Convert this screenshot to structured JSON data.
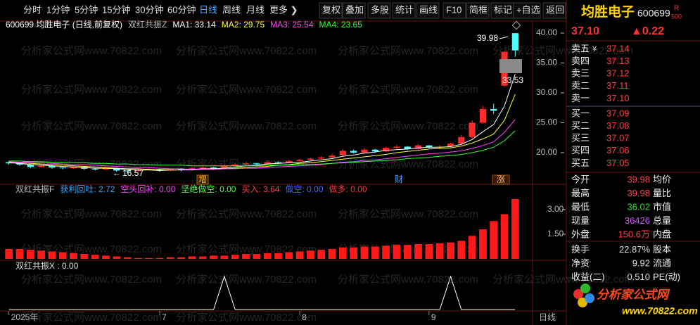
{
  "toolbar": {
    "periods": [
      "分时",
      "1分钟",
      "5分钟",
      "15分钟",
      "30分钟",
      "60分钟",
      "日线",
      "周线",
      "月线",
      "更多 ❯"
    ],
    "selected_period": 6,
    "actions": [
      "复权",
      "叠加",
      "多股",
      "统计",
      "画线",
      "F10",
      "简框",
      "标记",
      "+自选",
      "返回"
    ]
  },
  "watermark": "分析家公式网www.70822.com",
  "chart_data": [
    {
      "type": "candlestick",
      "title": "600699 均胜电子 (日线,前复权)",
      "indicator": "双红共振Z",
      "categories": [
        "2025年",
        null,
        null,
        null,
        null,
        null,
        null,
        null,
        null,
        null,
        null,
        null,
        null,
        null,
        "7",
        null,
        null,
        null,
        null,
        null,
        null,
        null,
        null,
        null,
        null,
        null,
        null,
        "8",
        null,
        null,
        null,
        null,
        null,
        null,
        null,
        null,
        null,
        null,
        null,
        "9",
        null,
        null,
        null,
        null,
        null,
        null,
        null,
        null
      ],
      "open": [
        18.4,
        18.2,
        18.0,
        17.6,
        17.8,
        17.5,
        17.4,
        17.6,
        17.3,
        17.2,
        17.4,
        17.0,
        16.9,
        17.1,
        17.2,
        17.0,
        17.3,
        17.1,
        17.4,
        17.5,
        17.3,
        17.8,
        18.0,
        18.2,
        18.1,
        18.4,
        18.3,
        18.6,
        18.8,
        19.0,
        19.2,
        19.6,
        20.3,
        20.0,
        20.5,
        20.2,
        20.8,
        21.0,
        20.6,
        21.2,
        20.9,
        21.0,
        21.5,
        22.6,
        25.0,
        27.3,
        31.2,
        39.98
      ],
      "high": [
        18.6,
        18.4,
        18.1,
        17.9,
        17.9,
        17.6,
        17.7,
        17.7,
        17.4,
        17.5,
        17.5,
        17.1,
        17.2,
        17.4,
        17.3,
        17.4,
        17.4,
        17.5,
        17.7,
        17.6,
        18.0,
        18.2,
        18.4,
        18.3,
        18.6,
        18.5,
        18.8,
        19.0,
        19.2,
        19.4,
        19.8,
        20.6,
        20.5,
        20.8,
        20.6,
        21.0,
        21.3,
        21.1,
        21.4,
        21.3,
        21.3,
        21.7,
        23.0,
        25.4,
        27.8,
        28.2,
        36.88,
        39.98
      ],
      "low": [
        18.0,
        17.8,
        17.4,
        17.5,
        17.3,
        17.2,
        17.3,
        17.1,
        17.0,
        17.1,
        16.8,
        16.57,
        16.8,
        17.0,
        16.8,
        16.9,
        16.9,
        17.0,
        17.3,
        17.1,
        17.2,
        17.8,
        17.9,
        17.9,
        18.0,
        18.1,
        18.2,
        18.5,
        18.6,
        18.9,
        19.0,
        19.4,
        19.8,
        19.9,
        20.0,
        20.1,
        20.6,
        20.4,
        20.5,
        20.7,
        20.6,
        20.8,
        21.3,
        22.4,
        24.8,
        26.5,
        31.0,
        36.02
      ],
      "close": [
        18.2,
        18.0,
        17.6,
        17.8,
        17.5,
        17.4,
        17.6,
        17.3,
        17.2,
        17.4,
        17.0,
        16.9,
        17.1,
        17.2,
        17.0,
        17.3,
        17.1,
        17.4,
        17.5,
        17.3,
        17.8,
        18.0,
        18.2,
        18.1,
        18.4,
        18.3,
        18.6,
        18.8,
        19.0,
        19.2,
        19.5,
        20.3,
        20.0,
        20.5,
        20.2,
        20.8,
        21.0,
        20.6,
        21.2,
        20.9,
        21.0,
        21.5,
        22.6,
        25.0,
        27.3,
        27.0,
        36.88,
        37.1
      ],
      "up_color": "#ff2a2a",
      "down_color": "#54ffff",
      "series": [
        {
          "name": "MA1: 33.14",
          "color": "#ffffff",
          "values": [
            18.3,
            18.2,
            18.0,
            17.9,
            17.8,
            17.7,
            17.6,
            17.5,
            17.4,
            17.4,
            17.3,
            17.2,
            17.1,
            17.1,
            17.0,
            17.1,
            17.1,
            17.2,
            17.3,
            17.3,
            17.4,
            17.6,
            17.8,
            17.9,
            18.1,
            18.2,
            18.3,
            18.4,
            18.6,
            18.8,
            19.0,
            19.4,
            19.6,
            19.9,
            20.1,
            20.4,
            20.5,
            20.6,
            20.8,
            20.9,
            20.9,
            21.0,
            21.4,
            22.2,
            23.5,
            24.7,
            27.8,
            33.14
          ]
        },
        {
          "name": "MA2: 29.75",
          "color": "#ffff33",
          "values": [
            18.4,
            18.3,
            18.2,
            18.1,
            18.0,
            17.9,
            17.8,
            17.7,
            17.6,
            17.5,
            17.4,
            17.3,
            17.3,
            17.2,
            17.2,
            17.1,
            17.1,
            17.1,
            17.2,
            17.2,
            17.3,
            17.4,
            17.5,
            17.6,
            17.7,
            17.9,
            18.0,
            18.2,
            18.3,
            18.5,
            18.7,
            18.9,
            19.1,
            19.3,
            19.5,
            19.7,
            20.0,
            20.2,
            20.4,
            20.6,
            20.7,
            20.8,
            21.1,
            21.6,
            22.3,
            23.1,
            25.4,
            29.75
          ]
        },
        {
          "name": "MA3: 25.54",
          "color": "#ff44ff",
          "values": [
            18.5,
            18.4,
            18.4,
            18.3,
            18.2,
            18.1,
            18.0,
            18.0,
            17.9,
            17.8,
            17.7,
            17.6,
            17.5,
            17.5,
            17.4,
            17.3,
            17.3,
            17.2,
            17.2,
            17.2,
            17.3,
            17.3,
            17.4,
            17.4,
            17.5,
            17.6,
            17.7,
            17.8,
            17.9,
            18.0,
            18.2,
            18.4,
            18.5,
            18.7,
            18.8,
            19.0,
            19.2,
            19.4,
            19.6,
            19.8,
            19.9,
            20.1,
            20.3,
            20.7,
            21.2,
            21.8,
            23.4,
            25.54
          ]
        },
        {
          "name": "MA4: 23.65",
          "color": "#33ff33",
          "values": [
            18.6,
            18.6,
            18.5,
            18.5,
            18.4,
            18.4,
            18.3,
            18.3,
            18.2,
            18.2,
            18.1,
            18.1,
            18.0,
            18.0,
            17.9,
            17.9,
            17.9,
            17.8,
            17.8,
            17.8,
            17.8,
            17.8,
            17.8,
            17.8,
            17.9,
            17.9,
            17.9,
            18.0,
            18.0,
            18.1,
            18.2,
            18.3,
            18.4,
            18.5,
            18.6,
            18.7,
            18.8,
            19.0,
            19.1,
            19.2,
            19.4,
            19.5,
            19.7,
            20.0,
            20.4,
            20.9,
            22.0,
            23.65
          ]
        }
      ],
      "ylim": [
        14.7,
        42
      ],
      "yticks": [
        {
          "value": 20,
          "label": "20.00"
        },
        {
          "value": 25,
          "label": "25.00"
        },
        {
          "value": 30,
          "label": "30.00"
        },
        {
          "value": 35,
          "label": "35.00"
        },
        {
          "value": 40,
          "label": "40.00"
        }
      ],
      "annotations": [
        39.98,
        33.53,
        16.57,
        "增",
        "财",
        "涨"
      ],
      "period_label": "日线"
    },
    {
      "type": "bar",
      "title": "双红共振F",
      "readouts": [
        {
          "text": "获利回吐: 2.72",
          "color": "#33aaff"
        },
        {
          "text": "空头回补: 0.00",
          "color": "#ff44ff"
        },
        {
          "text": "坚绝做空: 0.00",
          "color": "#44ff44"
        },
        {
          "text": "买入: 3.64",
          "color": "#ff4444"
        },
        {
          "text": "做空: 0.00",
          "color": "#4466ff"
        },
        {
          "text": "做多: 0.00",
          "color": "#ff3333"
        }
      ],
      "values": [
        0.6,
        0.6,
        0.55,
        0.5,
        0.45,
        0.4,
        0.35,
        0.3,
        0.25,
        0.2,
        0.15,
        0.1,
        0.05,
        0.05,
        0.05,
        0.1,
        0.1,
        0.15,
        0.15,
        0.2,
        0.2,
        0.25,
        0.3,
        0.3,
        0.35,
        0.35,
        0.4,
        0.45,
        0.5,
        0.55,
        0.6,
        0.7,
        0.7,
        0.75,
        0.75,
        0.8,
        0.85,
        0.85,
        0.9,
        0.9,
        0.95,
        1.0,
        1.1,
        1.4,
        1.8,
        2.3,
        2.72,
        3.64
      ],
      "color": "#ff1a1a",
      "ylim": [
        0,
        4.54
      ],
      "yticks": [
        {
          "value": 1.5,
          "label": "1.50"
        },
        {
          "value": 3,
          "label": "3.00"
        }
      ]
    },
    {
      "type": "line",
      "title": "双红共振X : 0.00",
      "values": [
        0,
        0,
        0,
        0,
        0,
        0,
        0,
        0,
        0,
        0,
        0,
        0,
        0,
        0,
        0,
        0,
        0,
        0,
        0,
        0,
        1,
        0,
        0,
        0,
        0,
        0,
        0,
        0,
        0,
        0,
        0,
        0,
        0,
        0,
        0,
        0,
        0,
        0,
        0,
        0,
        0,
        1,
        0,
        0,
        0,
        0,
        0,
        0
      ],
      "color": "#ffffff",
      "ylim": [
        0,
        1.5
      ]
    }
  ],
  "quote_panel": {
    "name": "均胜电子",
    "code": "600699",
    "badge": [
      "R",
      "500"
    ],
    "price": "37.10",
    "change": "▲0.22",
    "ask_flag": "¥",
    "asks": [
      [
        "卖五",
        "37.14"
      ],
      [
        "卖四",
        "37.13"
      ],
      [
        "卖三",
        "37.12"
      ],
      [
        "卖二",
        "37.11"
      ],
      [
        "卖一",
        "37.10"
      ]
    ],
    "bids": [
      [
        "买一",
        "37.09"
      ],
      [
        "买二",
        "37.08"
      ],
      [
        "买三",
        "37.07"
      ],
      [
        "买四",
        "37.06"
      ],
      [
        "买五",
        "37.05"
      ]
    ],
    "stats": [
      [
        "今开",
        "39.98",
        "均价"
      ],
      [
        "最高",
        "39.98",
        "量比"
      ],
      [
        "最低",
        "36.02",
        "市值"
      ],
      [
        "现量",
        "36426",
        "总量"
      ],
      [
        "外盘",
        "150.6万",
        "内盘"
      ],
      [
        "换手",
        "22.87%",
        "股本"
      ],
      [
        "净资",
        "9.92",
        "流通"
      ],
      [
        "收益(二)",
        "0.510",
        "PE(动)"
      ]
    ],
    "stat_colors": [
      "#ff4444",
      "#ff4444",
      "#33dd33",
      "#cc55ff",
      "#ff4444",
      "#dddddd",
      "#dddddd",
      "#dddddd"
    ]
  },
  "logo": {
    "name": "分析家公式网",
    "url": "www.70822.com"
  }
}
